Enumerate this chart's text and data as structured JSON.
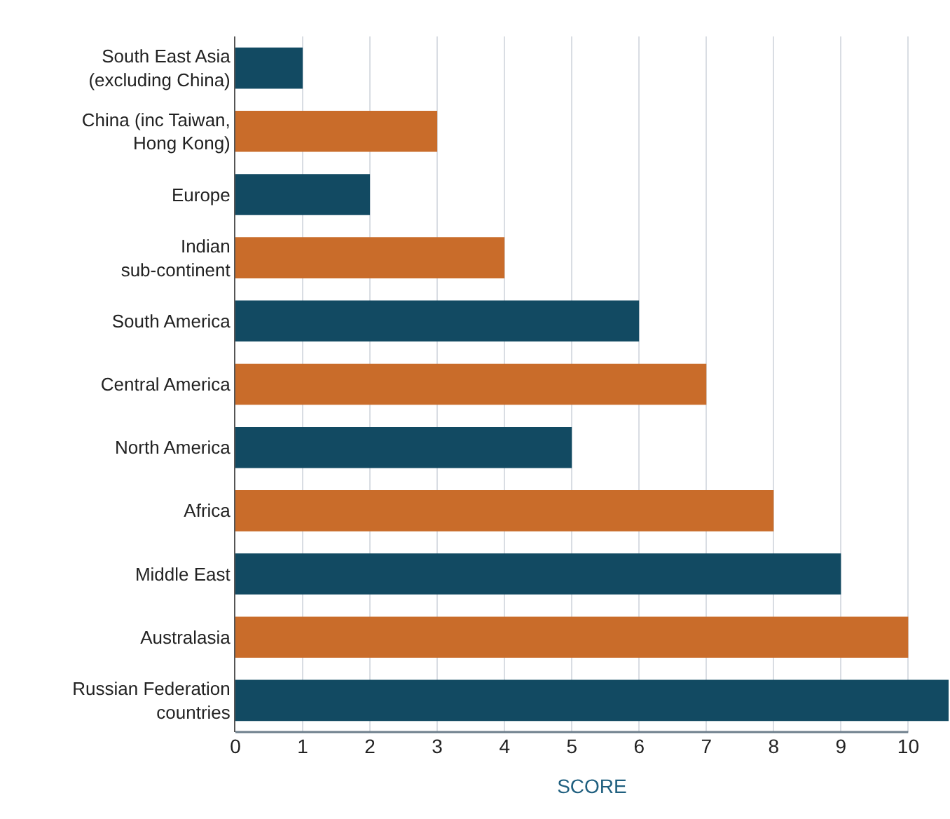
{
  "chart_data": {
    "type": "bar",
    "orientation": "horizontal",
    "xlabel": "SCORE",
    "categories": [
      "South East Asia\n(excluding China)",
      "China (inc Taiwan,\nHong Kong)",
      "Europe",
      "Indian\nsub-continent",
      "South America",
      "Central America",
      "North America",
      "Africa",
      "Middle East",
      "Australasia",
      "Russian Federation\ncountries"
    ],
    "values": [
      1,
      3,
      2,
      4,
      6,
      7,
      5,
      8,
      9,
      10,
      10.6
    ],
    "colors": [
      "#124a62",
      "#c96c2a",
      "#124a62",
      "#c96c2a",
      "#124a62",
      "#c96c2a",
      "#124a62",
      "#c96c2a",
      "#124a62",
      "#c96c2a",
      "#124a62"
    ],
    "xlim": [
      0,
      10.6
    ],
    "xticks": [
      0,
      1,
      2,
      3,
      4,
      5,
      6,
      7,
      8,
      9,
      10
    ],
    "grid": "x"
  }
}
